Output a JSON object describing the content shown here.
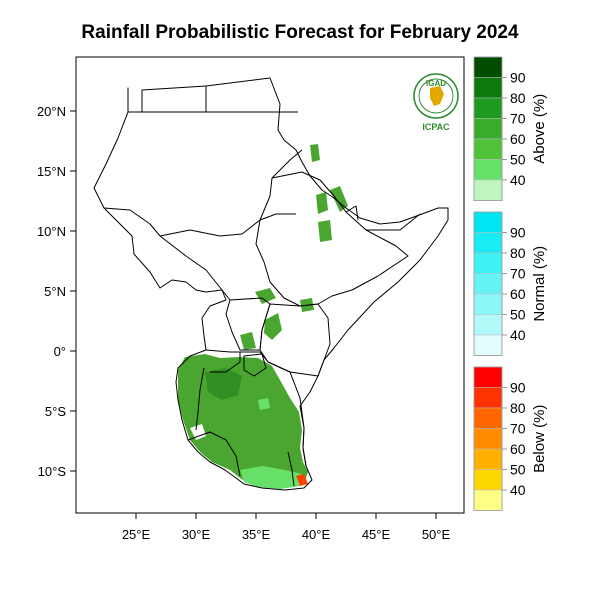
{
  "title": "Rainfall Probabilistic Forecast for February 2024",
  "logo": {
    "top_text": "IGAD",
    "bottom_text": "ICPAC"
  },
  "axes": {
    "lon_ticks": [
      "25°E",
      "30°E",
      "35°E",
      "40°E",
      "45°E",
      "50°E"
    ],
    "lat_ticks": [
      "20°N",
      "15°N",
      "10°N",
      "5°N",
      "0°",
      "5°S",
      "10°S"
    ]
  },
  "legends": [
    {
      "title": "Above (%)",
      "labels": [
        "90",
        "80",
        "70",
        "60",
        "50",
        "40"
      ],
      "colors": [
        "#004d00",
        "#0b7a0b",
        "#1f9a1f",
        "#37ad2b",
        "#4fc23a",
        "#66e066",
        "#bff5bf"
      ]
    },
    {
      "title": "Normal (%)",
      "labels": [
        "90",
        "80",
        "70",
        "60",
        "50",
        "40"
      ],
      "colors": [
        "#00e6f0",
        "#19ecf2",
        "#3ff0f4",
        "#66f3f6",
        "#8cf6f8",
        "#b3f9fa",
        "#e0fcfd"
      ]
    },
    {
      "title": "Below (%)",
      "labels": [
        "90",
        "80",
        "70",
        "60",
        "50",
        "40"
      ],
      "colors": [
        "#ff0000",
        "#ff3300",
        "#ff6600",
        "#ff8c00",
        "#ffb000",
        "#ffd700",
        "#ffff88"
      ]
    }
  ],
  "colors": {
    "forecast_main": "#4aa630",
    "forecast_light": "#66e066",
    "forecast_dark": "#2f8f22",
    "below_spot": "#ff4000",
    "logo_green": "#2e8b2e",
    "logo_gold": "#e0a800"
  }
}
